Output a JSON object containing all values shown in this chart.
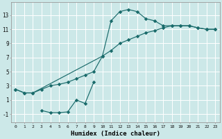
{
  "xlabel": "Humidex (Indice chaleur)",
  "bg_color": "#cce8e8",
  "grid_color": "#b0d0d0",
  "line_color": "#1a6b6b",
  "xlim": [
    -0.5,
    23.5
  ],
  "ylim": [
    -2.2,
    14.8
  ],
  "xticks": [
    0,
    1,
    2,
    3,
    4,
    5,
    6,
    7,
    8,
    9,
    10,
    11,
    12,
    13,
    14,
    15,
    16,
    17,
    18,
    19,
    20,
    21,
    22,
    23
  ],
  "yticks": [
    -1,
    1,
    3,
    5,
    7,
    9,
    11,
    13
  ],
  "line1_x": [
    0,
    1,
    2,
    10,
    11,
    12,
    13,
    14,
    15,
    16,
    17,
    18,
    19,
    20,
    21,
    22,
    23
  ],
  "line1_y": [
    2.5,
    2.0,
    2.0,
    7.2,
    12.2,
    13.5,
    13.8,
    13.5,
    12.5,
    12.2,
    11.5,
    11.5,
    11.5,
    11.5,
    11.2,
    11.0,
    11.0
  ],
  "line2_x": [
    0,
    1,
    2,
    3,
    4,
    5,
    6,
    7,
    8,
    9,
    10,
    11,
    12,
    13,
    14,
    15,
    16,
    17,
    18,
    19,
    20,
    21,
    22,
    23
  ],
  "line2_y": [
    2.5,
    2.0,
    2.0,
    2.5,
    3.0,
    3.2,
    3.5,
    4.0,
    4.5,
    5.0,
    7.2,
    8.0,
    9.0,
    9.5,
    10.0,
    10.5,
    10.8,
    11.2,
    11.5,
    11.5,
    11.5,
    11.2,
    11.0,
    11.0
  ],
  "line3_x": [
    3,
    4,
    5,
    6,
    7,
    8,
    9
  ],
  "line3_y": [
    -0.5,
    -0.8,
    -0.8,
    -0.7,
    1.0,
    0.5,
    3.5
  ]
}
